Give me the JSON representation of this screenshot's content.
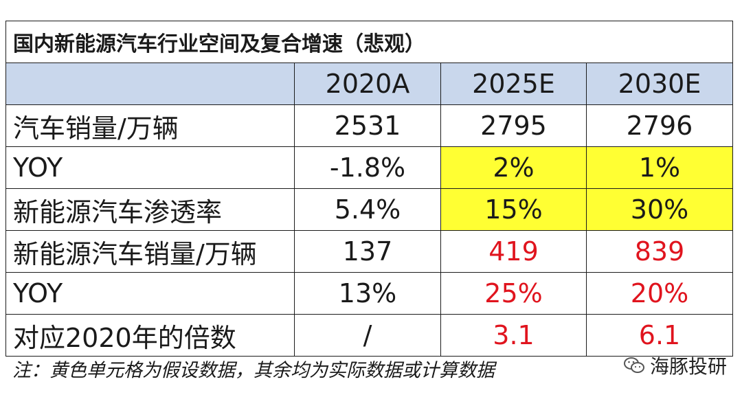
{
  "table": {
    "title": "国内新能源汽车行业空间及复合增速（悲观）",
    "columns": [
      "",
      "2020A",
      "2025E",
      "2030E"
    ],
    "rows": [
      {
        "label": "汽车销量/万辆",
        "cells": [
          "2531",
          "2795",
          "2796"
        ]
      },
      {
        "label": "YOY",
        "cells": [
          "-1.8%",
          "2%",
          "1%"
        ]
      },
      {
        "label": "新能源汽车渗透率",
        "cells": [
          "5.4%",
          "15%",
          "30%"
        ]
      },
      {
        "label": "新能源汽车销量/万辆",
        "cells": [
          "137",
          "419",
          "839"
        ]
      },
      {
        "label": "YOY",
        "cells": [
          "13%",
          "25%",
          "20%"
        ]
      },
      {
        "label": "对应2020年的倍数",
        "cells": [
          "/",
          "3.1",
          "6.1"
        ]
      }
    ]
  },
  "note": "注：黄色单元格为假设数据，其余均为实际数据或计算数据",
  "brand": {
    "name": "海豚投研",
    "icon": "wechat-icon"
  },
  "colors": {
    "header_bg": "#c9d7ec",
    "highlight_yellow": "#ffff33",
    "red_text": "#e0141e"
  }
}
